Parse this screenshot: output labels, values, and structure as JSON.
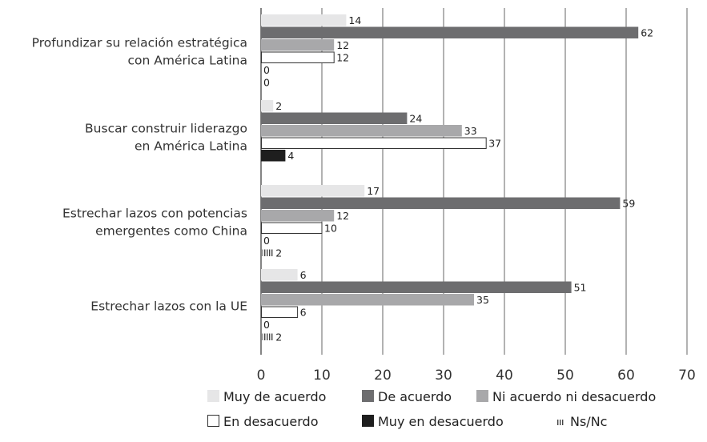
{
  "chart_data": {
    "type": "bar",
    "orientation": "horizontal",
    "title": "",
    "xlabel": "",
    "ylabel": "",
    "xlim": [
      0,
      70
    ],
    "xticks": [
      0,
      10,
      20,
      30,
      40,
      50,
      60,
      70
    ],
    "grid": "vertical",
    "legend_position": "bottom",
    "categories": [
      [
        "Profundizar su relación estratégica",
        "con América Latina"
      ],
      [
        "Buscar construir liderazgo",
        "en América Latina"
      ],
      [
        "Estrechar lazos con potencias",
        "emergentes como China"
      ],
      [
        "Estrechar lazos con la UE"
      ]
    ],
    "series": [
      {
        "name": "Muy de acuerdo",
        "color": "#e6e6e7",
        "style": "solid",
        "values": [
          14,
          2,
          17,
          6
        ],
        "labels": [
          "14",
          "2",
          "17",
          "6"
        ]
      },
      {
        "name": "De acuerdo",
        "color": "#6d6d6f",
        "style": "solid",
        "values": [
          62,
          24,
          59,
          51
        ],
        "labels": [
          "62",
          "24",
          "59",
          "51"
        ]
      },
      {
        "name": "Ni acuerdo ni desacuerdo",
        "color": "#a8a8aa",
        "style": "solid",
        "values": [
          12,
          33,
          12,
          35
        ],
        "labels": [
          "12",
          "33",
          "12",
          "35"
        ]
      },
      {
        "name": "En desacuerdo",
        "color": "#ffffff",
        "style": "outline",
        "values": [
          12,
          37,
          10,
          6
        ],
        "labels": [
          "12",
          "37",
          "10",
          "6"
        ]
      },
      {
        "name": "Muy en desacuerdo",
        "color": "#1e1e1e",
        "style": "solid",
        "values": [
          0,
          4,
          0,
          0
        ],
        "labels": [
          "0",
          "4",
          "0",
          "0"
        ]
      },
      {
        "name": "Ns/Nc",
        "color": "#555555",
        "style": "hatched",
        "values": [
          0,
          0,
          2,
          2
        ],
        "labels": [
          "0",
          "",
          "2",
          "2"
        ]
      }
    ]
  }
}
